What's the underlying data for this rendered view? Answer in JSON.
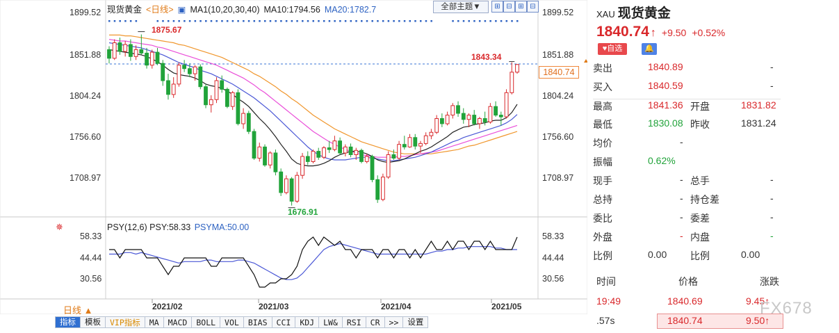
{
  "legend": {
    "name": "现货黄金",
    "period_tag": "<日线>",
    "ma_text": "MA1(10,20,30,40)",
    "ma10": "MA10:1794.56",
    "ma20": "MA20:1782.7"
  },
  "toolbar_top": {
    "theme": "全部主题▼",
    "icons": [
      "⊞",
      "⊟",
      "⊞",
      "⊟"
    ]
  },
  "price_axis": [
    "1899.52",
    "1851.88",
    "1804.24",
    "1756.60",
    "1708.97"
  ],
  "psy_axis": [
    "58.33",
    "44.44",
    "30.56"
  ],
  "annotations": {
    "high": "1875.67",
    "low": "1676.91",
    "recent_high": "1843.34",
    "last_tag": "1840.74"
  },
  "psy_legend": {
    "name": "PSY(12,6)",
    "psy": "PSY:58.33",
    "psyma": "PSYMA:50.00"
  },
  "x_dates": [
    "2021/02",
    "2021/03",
    "2021/04",
    "2021/05"
  ],
  "period_button": "日线 ▲",
  "bottom_toolbar": [
    "指标",
    "模板",
    "VIP指标",
    "MA",
    "MACD",
    "BOLL",
    "VOL",
    "BIAS",
    "CCI",
    "KDJ",
    "LW&",
    "RSI",
    "CR",
    ">>",
    "设置"
  ],
  "colors": {
    "up": "#d9282b",
    "down": "#21a33a",
    "ma10": "#222222",
    "ma20": "#4a57d6",
    "ma30": "#ea4fd9",
    "ma40": "#f0962c",
    "psy": "#111111",
    "psyma": "#4a57d6",
    "dotted": "#2d62c2"
  },
  "side": {
    "code": "XAU",
    "name": "现货黄金",
    "price": "1840.74",
    "arrow": "↑",
    "change": "+9.50",
    "change_pct": "+0.52%",
    "fav": "♥自选",
    "bell": "🔔",
    "rows": [
      {
        "l1": "卖出",
        "v1": "1840.89",
        "l2": "",
        "v2": "-"
      },
      {
        "l1": "买入",
        "v1": "1840.59",
        "l2": "",
        "v2": "-"
      },
      {
        "l1": "最高",
        "v1": "1841.36",
        "l2": "开盘",
        "v2": "1831.82"
      },
      {
        "l1": "最低",
        "v1": "1830.08",
        "l2": "昨收",
        "v2": "1831.24"
      },
      {
        "l1": "均价",
        "v1": "-",
        "l2": "",
        "v2": ""
      },
      {
        "l1": "振幅",
        "v1": "0.62%",
        "l2": "",
        "v2": ""
      },
      {
        "l1": "现手",
        "v1": "-",
        "l2": "总手",
        "v2": "-"
      },
      {
        "l1": "总持",
        "v1": "-",
        "l2": "持仓差",
        "v2": "-"
      },
      {
        "l1": "委比",
        "v1": "-",
        "l2": "委差",
        "v2": "-"
      },
      {
        "l1": "外盘",
        "v1": "-",
        "l2": "内盘",
        "v2": "-"
      },
      {
        "l1": "比例",
        "v1": "0.00",
        "l2": "比例",
        "v2": "0.00"
      }
    ],
    "trade_head": {
      "time": "时间",
      "price": "价格",
      "chg": "涨跌"
    },
    "trades": [
      {
        "time": "19:49",
        "price": "1840.69",
        "chg": "9.45↑"
      },
      {
        "time": ".57s",
        "price": "1840.74",
        "chg": "9.50↑"
      }
    ],
    "watermark": "FX678"
  },
  "chart_data": {
    "type": "candlestick",
    "title": "现货黄金 <日线>",
    "price_ylim": [
      1676.91,
      1899.52
    ],
    "psy_ylim": [
      30.56,
      58.33
    ],
    "candles": [
      [
        1858,
        1862,
        1842,
        1848
      ],
      [
        1848,
        1870,
        1846,
        1866
      ],
      [
        1866,
        1872,
        1852,
        1856
      ],
      [
        1856,
        1868,
        1850,
        1864
      ],
      [
        1864,
        1870,
        1845,
        1850
      ],
      [
        1850,
        1863,
        1846,
        1858
      ],
      [
        1858,
        1875.67,
        1852,
        1854
      ],
      [
        1854,
        1860,
        1836,
        1840
      ],
      [
        1840,
        1858,
        1836,
        1855
      ],
      [
        1855,
        1860,
        1840,
        1842
      ],
      [
        1842,
        1846,
        1816,
        1822
      ],
      [
        1822,
        1830,
        1800,
        1806
      ],
      [
        1806,
        1826,
        1802,
        1818
      ],
      [
        1818,
        1843,
        1815,
        1840
      ],
      [
        1840,
        1846,
        1832,
        1836
      ],
      [
        1836,
        1842,
        1826,
        1830
      ],
      [
        1830,
        1840,
        1822,
        1838
      ],
      [
        1838,
        1841,
        1812,
        1815
      ],
      [
        1815,
        1818,
        1790,
        1794
      ],
      [
        1794,
        1805,
        1785,
        1800
      ],
      [
        1800,
        1826,
        1796,
        1822
      ],
      [
        1822,
        1828,
        1808,
        1812
      ],
      [
        1812,
        1814,
        1790,
        1792
      ],
      [
        1792,
        1810,
        1788,
        1808
      ],
      [
        1808,
        1812,
        1770,
        1772
      ],
      [
        1772,
        1790,
        1766,
        1784
      ],
      [
        1784,
        1787,
        1760,
        1763
      ],
      [
        1763,
        1766,
        1730,
        1732
      ],
      [
        1732,
        1750,
        1728,
        1745
      ],
      [
        1745,
        1748,
        1722,
        1724
      ],
      [
        1724,
        1740,
        1720,
        1738
      ],
      [
        1738,
        1742,
        1712,
        1716
      ],
      [
        1716,
        1720,
        1688,
        1692
      ],
      [
        1692,
        1712,
        1690,
        1708
      ],
      [
        1708,
        1710,
        1676.91,
        1682
      ],
      [
        1682,
        1716,
        1680,
        1712
      ],
      [
        1712,
        1738,
        1708,
        1734
      ],
      [
        1734,
        1740,
        1724,
        1728
      ],
      [
        1728,
        1742,
        1726,
        1740
      ],
      [
        1740,
        1744,
        1730,
        1733
      ],
      [
        1733,
        1746,
        1731,
        1744
      ],
      [
        1744,
        1752,
        1738,
        1742
      ],
      [
        1742,
        1758,
        1740,
        1752
      ],
      [
        1752,
        1756,
        1736,
        1738
      ],
      [
        1738,
        1748,
        1734,
        1745
      ],
      [
        1745,
        1749,
        1733,
        1736
      ],
      [
        1736,
        1744,
        1730,
        1741
      ],
      [
        1741,
        1743,
        1726,
        1728
      ],
      [
        1728,
        1737,
        1726,
        1734
      ],
      [
        1734,
        1736,
        1704,
        1707
      ],
      [
        1707,
        1712,
        1680,
        1684
      ],
      [
        1684,
        1714,
        1682,
        1710
      ],
      [
        1710,
        1740,
        1708,
        1736
      ],
      [
        1736,
        1742,
        1730,
        1732
      ],
      [
        1732,
        1752,
        1730,
        1748
      ],
      [
        1748,
        1758,
        1742,
        1745
      ],
      [
        1745,
        1760,
        1744,
        1756
      ],
      [
        1756,
        1760,
        1742,
        1746
      ],
      [
        1746,
        1752,
        1738,
        1749
      ],
      [
        1749,
        1762,
        1747,
        1758
      ],
      [
        1758,
        1766,
        1754,
        1762
      ],
      [
        1762,
        1782,
        1760,
        1778
      ],
      [
        1778,
        1784,
        1768,
        1772
      ],
      [
        1772,
        1786,
        1770,
        1782
      ],
      [
        1782,
        1796,
        1778,
        1793
      ],
      [
        1793,
        1798,
        1780,
        1784
      ],
      [
        1784,
        1790,
        1772,
        1777
      ],
      [
        1777,
        1784,
        1768,
        1782
      ],
      [
        1782,
        1788,
        1770,
        1772
      ],
      [
        1772,
        1780,
        1766,
        1778
      ],
      [
        1778,
        1786,
        1770,
        1774
      ],
      [
        1774,
        1796,
        1772,
        1792
      ],
      [
        1792,
        1798,
        1780,
        1782
      ],
      [
        1782,
        1786,
        1770,
        1780
      ],
      [
        1780,
        1812,
        1778,
        1808
      ],
      [
        1808,
        1843.34,
        1806,
        1831.82
      ],
      [
        1831.82,
        1841.36,
        1830.08,
        1840.74
      ]
    ],
    "ma10": [
      1858,
      1857,
      1856,
      1855,
      1854,
      1853,
      1852,
      1850,
      1847,
      1844,
      1840,
      1835,
      1831,
      1829,
      1828,
      1827,
      1825,
      1822,
      1818,
      1816,
      1815,
      1813,
      1810,
      1806,
      1801,
      1797,
      1792,
      1785,
      1778,
      1772,
      1765,
      1757,
      1748,
      1740,
      1731,
      1726,
      1724,
      1723,
      1723,
      1724,
      1726,
      1729,
      1733,
      1736,
      1738,
      1740,
      1740,
      1739,
      1737,
      1734,
      1730,
      1728,
      1727,
      1728,
      1729,
      1731,
      1734,
      1737,
      1740,
      1742,
      1745,
      1749,
      1753,
      1757,
      1762,
      1765,
      1768,
      1769,
      1771,
      1772,
      1773,
      1775,
      1776,
      1776,
      1779,
      1785,
      1794.56
    ],
    "ma20": [
      1866,
      1865,
      1864,
      1863,
      1862,
      1861,
      1860,
      1858,
      1856,
      1854,
      1852,
      1849,
      1846,
      1843,
      1841,
      1839,
      1837,
      1834,
      1832,
      1830,
      1827,
      1824,
      1821,
      1818,
      1814,
      1810,
      1806,
      1802,
      1797,
      1792,
      1787,
      1781,
      1775,
      1769,
      1763,
      1757,
      1751,
      1745,
      1740,
      1736,
      1733,
      1731,
      1730,
      1730,
      1730,
      1731,
      1732,
      1733,
      1733,
      1732,
      1731,
      1730,
      1729,
      1729,
      1730,
      1731,
      1732,
      1733,
      1735,
      1737,
      1739,
      1742,
      1745,
      1748,
      1751,
      1753,
      1756,
      1758,
      1760,
      1762,
      1764,
      1766,
      1768,
      1770,
      1773,
      1777,
      1782.7
    ],
    "ma30": [
      1870,
      1869,
      1868,
      1868,
      1867,
      1866,
      1865,
      1864,
      1863,
      1861,
      1860,
      1858,
      1856,
      1854,
      1852,
      1850,
      1848,
      1846,
      1844,
      1842,
      1840,
      1837,
      1834,
      1831,
      1828,
      1825,
      1821,
      1817,
      1812,
      1808,
      1803,
      1798,
      1793,
      1788,
      1783,
      1778,
      1773,
      1768,
      1763,
      1759,
      1755,
      1751,
      1748,
      1745,
      1742,
      1740,
      1738,
      1736,
      1735,
      1734,
      1733,
      1733,
      1733,
      1733,
      1734,
      1734,
      1735,
      1736,
      1737,
      1738,
      1739,
      1740,
      1742,
      1744,
      1746,
      1748,
      1750,
      1752,
      1754,
      1756,
      1758,
      1760,
      1762,
      1764,
      1766,
      1768,
      1770
    ],
    "ma40": [
      1875,
      1875,
      1875,
      1874,
      1874,
      1873,
      1872,
      1871,
      1870,
      1869,
      1868,
      1867,
      1866,
      1864,
      1863,
      1861,
      1859,
      1857,
      1855,
      1853,
      1851,
      1849,
      1846,
      1843,
      1840,
      1837,
      1834,
      1830,
      1827,
      1823,
      1819,
      1815,
      1810,
      1806,
      1801,
      1797,
      1792,
      1787,
      1782,
      1778,
      1774,
      1770,
      1766,
      1763,
      1760,
      1757,
      1754,
      1751,
      1749,
      1747,
      1745,
      1743,
      1741,
      1739,
      1738,
      1737,
      1737,
      1737,
      1737,
      1737,
      1737,
      1738,
      1739,
      1740,
      1741,
      1742,
      1744,
      1746,
      1747,
      1749,
      1751,
      1753,
      1755,
      1757,
      1759,
      1761,
      1763
    ],
    "psy": [
      50,
      50,
      44.44,
      50,
      50,
      50,
      50,
      44.44,
      44.44,
      44.44,
      38.89,
      33.33,
      38.89,
      38.89,
      44.44,
      44.44,
      44.44,
      44.44,
      44.44,
      38.89,
      38.89,
      44.44,
      44.44,
      44.44,
      44.44,
      44.44,
      38.89,
      33.33,
      25,
      25,
      27.78,
      27.78,
      30.56,
      30.56,
      33.33,
      38.89,
      50,
      55.56,
      58.33,
      52.78,
      58.33,
      55.56,
      52.78,
      55.56,
      50,
      50,
      44.44,
      50,
      50,
      50,
      44.44,
      50,
      50,
      44.44,
      50,
      50,
      44.44,
      50,
      44.44,
      50,
      55.56,
      50,
      50,
      55.56,
      50,
      55.56,
      55.56,
      50,
      55.56,
      55.56,
      50,
      55.56,
      50,
      50,
      50,
      50,
      58.33
    ],
    "psyma": [
      47,
      47,
      47,
      48,
      48,
      47,
      48,
      47,
      46,
      45,
      44,
      43,
      42,
      41,
      42,
      42,
      42,
      42,
      43,
      43,
      42,
      42,
      42,
      42,
      43,
      43,
      42,
      41,
      39,
      37,
      35,
      33,
      31,
      30,
      30,
      31,
      34,
      38,
      42,
      46,
      50,
      52,
      53,
      54,
      53,
      52,
      51,
      50,
      49,
      48,
      47,
      47,
      47,
      47,
      47,
      47,
      47,
      47,
      47,
      47,
      48,
      49,
      49,
      50,
      50,
      51,
      51,
      52,
      52,
      52,
      52,
      52,
      51,
      51,
      50,
      50,
      50
    ]
  }
}
